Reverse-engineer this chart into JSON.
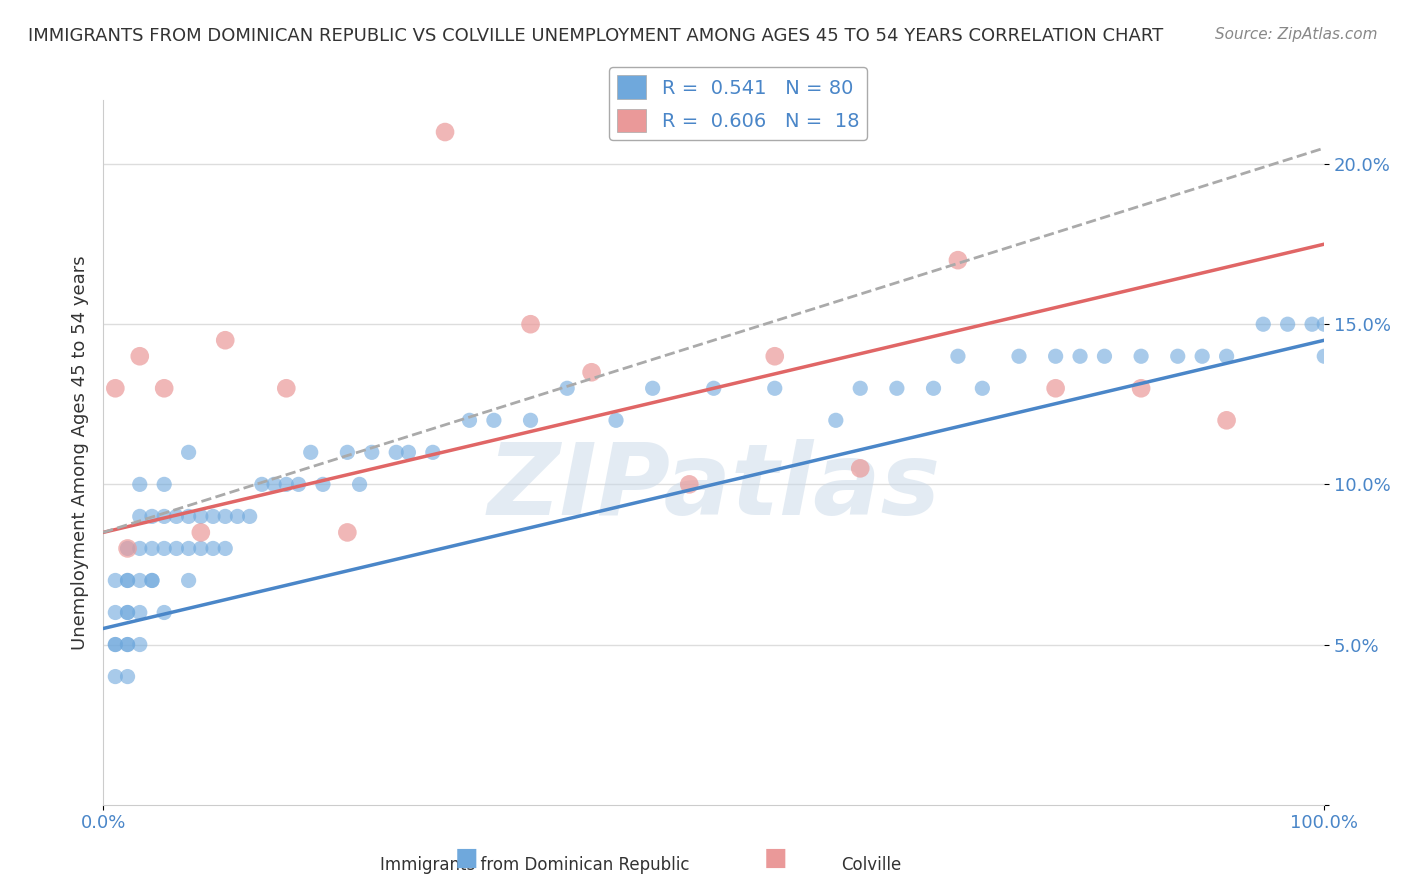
{
  "title": "IMMIGRANTS FROM DOMINICAN REPUBLIC VS COLVILLE UNEMPLOYMENT AMONG AGES 45 TO 54 YEARS CORRELATION CHART",
  "source": "Source: ZipAtlas.com",
  "xlabel": "",
  "ylabel": "Unemployment Among Ages 45 to 54 years",
  "xlim": [
    0,
    100
  ],
  "ylim": [
    0,
    22
  ],
  "ytick_labels": [
    "",
    "5.0%",
    "10.0%",
    "15.0%",
    "20.0%"
  ],
  "ytick_values": [
    0,
    5,
    10,
    15,
    20
  ],
  "xtick_labels": [
    "0.0%",
    "100.0%"
  ],
  "xtick_values": [
    0,
    100
  ],
  "blue_R": 0.541,
  "blue_N": 80,
  "pink_R": 0.606,
  "pink_N": 18,
  "blue_color": "#6fa8dc",
  "pink_color": "#ea9999",
  "blue_line_color": "#4a86c8",
  "pink_line_color": "#e06666",
  "legend_border_color": "#aaaaaa",
  "grid_color": "#dddddd",
  "background_color": "#ffffff",
  "watermark_text": "ZIPatlas",
  "watermark_color": "#c8d8e8",
  "blue_scatter_x": [
    1,
    1,
    1,
    1,
    1,
    2,
    2,
    2,
    2,
    2,
    2,
    2,
    2,
    3,
    3,
    3,
    3,
    3,
    3,
    4,
    4,
    4,
    4,
    5,
    5,
    5,
    5,
    6,
    6,
    7,
    7,
    7,
    7,
    8,
    8,
    9,
    9,
    10,
    10,
    11,
    12,
    13,
    14,
    15,
    16,
    17,
    18,
    20,
    21,
    22,
    24,
    25,
    27,
    30,
    32,
    35,
    38,
    42,
    45,
    50,
    55,
    60,
    62,
    65,
    68,
    70,
    72,
    75,
    78,
    80,
    82,
    85,
    88,
    90,
    92,
    95,
    97,
    99,
    100,
    100
  ],
  "blue_scatter_y": [
    4,
    5,
    5,
    6,
    7,
    4,
    5,
    5,
    6,
    6,
    7,
    7,
    8,
    5,
    6,
    7,
    8,
    9,
    10,
    7,
    7,
    8,
    9,
    6,
    8,
    9,
    10,
    8,
    9,
    7,
    8,
    9,
    11,
    8,
    9,
    8,
    9,
    8,
    9,
    9,
    9,
    10,
    10,
    10,
    10,
    11,
    10,
    11,
    10,
    11,
    11,
    11,
    11,
    12,
    12,
    12,
    13,
    12,
    13,
    13,
    13,
    12,
    13,
    13,
    13,
    14,
    13,
    14,
    14,
    14,
    14,
    14,
    14,
    14,
    14,
    15,
    15,
    15,
    15,
    14
  ],
  "pink_scatter_x": [
    1,
    2,
    3,
    5,
    8,
    10,
    15,
    20,
    28,
    35,
    40,
    48,
    55,
    62,
    70,
    78,
    85,
    92
  ],
  "pink_scatter_y": [
    13,
    8,
    14,
    13,
    8.5,
    14.5,
    13,
    8.5,
    21,
    15,
    13.5,
    10,
    14,
    10.5,
    17,
    13,
    13,
    12
  ],
  "blue_line_x": [
    0,
    100
  ],
  "blue_line_y": [
    5.5,
    14.5
  ],
  "pink_line_x": [
    0,
    100
  ],
  "pink_line_y": [
    8.5,
    17.5
  ],
  "pink_dash_line_x": [
    0,
    100
  ],
  "pink_dash_line_y": [
    8.5,
    20.5
  ]
}
